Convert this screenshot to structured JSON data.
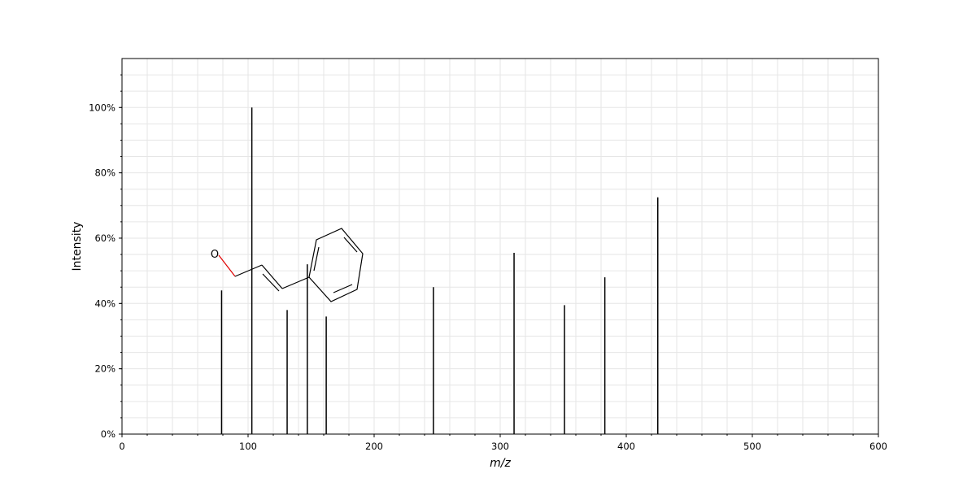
{
  "chart_data": {
    "type": "bar",
    "title": "",
    "xlabel": "m/z",
    "ylabel": "Intensity",
    "xlim": [
      0,
      600
    ],
    "ylim": [
      0,
      1.15
    ],
    "x_ticks": [
      0,
      100,
      200,
      300,
      400,
      500,
      600
    ],
    "x_tick_labels": [
      "0",
      "100",
      "200",
      "300",
      "400",
      "500",
      "600"
    ],
    "y_ticks": [
      0,
      0.2,
      0.4,
      0.6,
      0.8,
      1.0
    ],
    "y_tick_labels": [
      "0%",
      "20%",
      "40%",
      "60%",
      "80%",
      "100%"
    ],
    "grid": true,
    "series": [
      {
        "x": [
          79,
          103,
          131,
          147,
          162,
          247,
          311,
          351,
          383,
          425
        ],
        "values": [
          0.44,
          1.0,
          0.38,
          0.52,
          0.36,
          0.45,
          0.555,
          0.395,
          0.48,
          0.725
        ]
      }
    ],
    "annotations": [
      {
        "type": "molecule-structure",
        "atom_labels": [
          "O"
        ]
      }
    ],
    "colors": {
      "bars": "#000000",
      "grid": "#e6e6e6",
      "heteroatom": "#ff0000"
    }
  }
}
